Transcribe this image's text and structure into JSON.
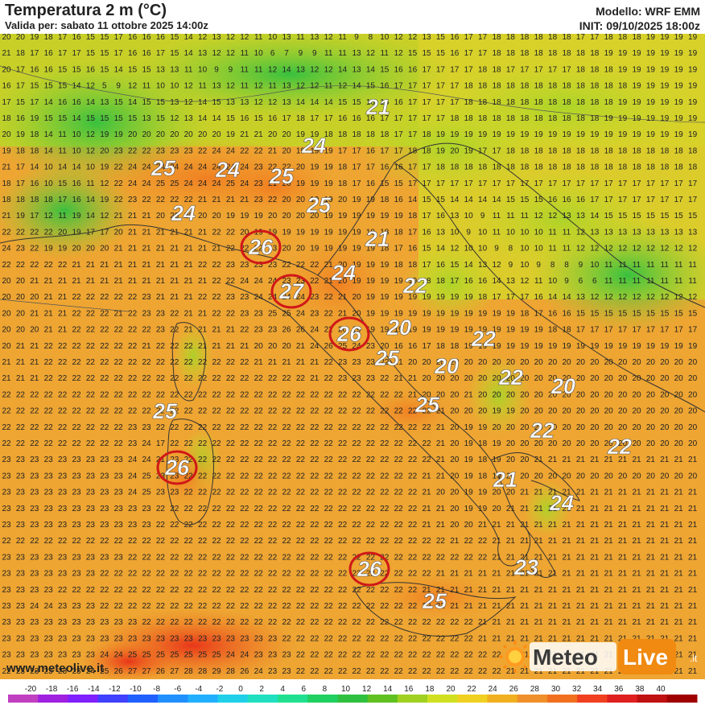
{
  "header": {
    "title": "Temperatura 2 m (°C)",
    "valid": "Valida per: sabato 11 ottobre 2025 14:00z",
    "model": "Modello: WRF EMM",
    "init": "INIT: 09/10/2025 18:00z"
  },
  "footer": {
    "site": "www.meteolive.it",
    "logo_left": "Meteo",
    "logo_right": "Live",
    "logo_suffix": ".it"
  },
  "scale": {
    "ticks": [
      "-20",
      "-18",
      "-16",
      "-14",
      "-12",
      "-10",
      "-8",
      "-6",
      "-4",
      "-2",
      "0",
      "2",
      "4",
      "6",
      "8",
      "10",
      "12",
      "14",
      "16",
      "18",
      "20",
      "22",
      "24",
      "26",
      "28",
      "30",
      "32",
      "34",
      "36",
      "38",
      "40"
    ],
    "colors": [
      "#c040c0",
      "#a020e0",
      "#8020ff",
      "#4040ff",
      "#2060ff",
      "#2090ff",
      "#20b0ff",
      "#20d0e8",
      "#20e0c0",
      "#20e090",
      "#20d060",
      "#30c040",
      "#60c020",
      "#a0d020",
      "#d0e020",
      "#f0d020",
      "#f0b020",
      "#f0902a",
      "#f07020",
      "#f04020",
      "#e02020",
      "#c01010",
      "#a00000"
    ]
  },
  "labels": [
    {
      "v": "21",
      "ring": false
    },
    {
      "v": "24",
      "ring": false
    },
    {
      "v": "25",
      "ring": false
    },
    {
      "v": "24",
      "ring": false
    },
    {
      "v": "25",
      "ring": false
    },
    {
      "v": "24",
      "ring": false
    },
    {
      "v": "25",
      "ring": false
    },
    {
      "v": "26",
      "ring": true
    },
    {
      "v": "21",
      "ring": false
    },
    {
      "v": "24",
      "ring": false
    },
    {
      "v": "27",
      "ring": true
    },
    {
      "v": "22",
      "ring": false
    },
    {
      "v": "26",
      "ring": true
    },
    {
      "v": "20",
      "ring": false
    },
    {
      "v": "22",
      "ring": false
    },
    {
      "v": "25",
      "ring": false
    },
    {
      "v": "20",
      "ring": false
    },
    {
      "v": "22",
      "ring": false
    },
    {
      "v": "20",
      "ring": false
    },
    {
      "v": "25",
      "ring": false
    },
    {
      "v": "25",
      "ring": false
    },
    {
      "v": "22",
      "ring": false
    },
    {
      "v": "22",
      "ring": false
    },
    {
      "v": "26",
      "ring": true
    },
    {
      "v": "21",
      "ring": false
    },
    {
      "v": "24",
      "ring": false
    },
    {
      "v": "26",
      "ring": true
    },
    {
      "v": "23",
      "ring": false
    },
    {
      "v": "25",
      "ring": false
    }
  ],
  "grid_rows": [
    "20 20 19 18 17 16 15 15 17 16 16 16 15 14 12 13 12 12 11 10 13 11 13 12 11 9 8 10 12 12 13 15 16 17 17 18 18 18 18 18 18 17 17 18 18 18 19 19 19 19",
    "21 18 17 16 17 17 15 15 17 16 16 17 15 14 13 12 12 11 10 6 7 9 9 11 11 13 12 11 12 15 15 15 16 17 17 18 18 18 18 18 18 18 18 19 19 19 19 19 19 19",
    "20 17 16 16 15 15 16 15 14 15 15 13 13 11 10 9 9 11 11 12 14 13 12 12 14 13 14 15 16 16 17 17 17 17 18 18 17 17 17 17 17 18 18 18 19 19 19 19 19 19",
    "16 17 15 15 15 14 12 5 9 12 11 10 10 12 11 13 12 11 12 11 13 12 12 11 12 14 15 16 17 17 17 17 17 18 18 18 18 18 18 18 18 18 18 18 18 19 19 19 19 19",
    "17 15 17 14 16 16 14 13 15 14 15 15 13 12 14 15 13 13 12 12 13 14 14 14 15 15 16 16 16 17 17 17 17 18 18 18 18 18 18 18 18 18 18 18 19 19 19 19 19 19",
    "18 16 19 15 15 14 15 15 15 15 13 15 12 13 14 14 15 16 15 16 17 18 17 17 16 16 16 17 17 17 17 17 18 18 18 18 18 18 18 18 18 18 18 19 19 19 19 19 19 19",
    "20 19 18 14 11 10 12 19 19 20 20 20 20 20 20 20 19 21 21 20 20 19 19 18 18 18 18 18 17 17 18 19 19 19 19 19 19 19 19 19 19 19 19 19 19 19 19 19 19 19",
    "19 18 18 14 11 10 12 20 23 22 22 23 23 23 22 24 24 22 22 21 20 19 19 19 17 17 16 17 17 18 18 19 20 19 17 17 18 18 18 18 18 18 18 18 18 18 18 18 18 18",
    "21 17 14 10 14 14 10 19 22 24 24 24 24 24 24 24 24 24 23 22 22 20 19 19 18 17 17 16 16 17 17 18 18 18 18 18 18 18 18 18 18 18 18 18 18 18 18 18 18 18",
    "18 17 16 10 15 16 11 12 22 24 24 25 25 24 24 24 25 24 23 21 20 19 19 19 18 17 16 15 15 17 17 17 17 17 17 17 17 17 17 17 17 17 17 17 17 17 17 17 17 17",
    "18 18 18 18 17 16 14 19 22 23 22 22 22 22 21 21 21 21 23 22 20 20 19 19 20 19 19 18 16 14 15 15 14 14 14 14 15 15 15 16 16 16 17 17 17 17 17 17 17 17",
    "21 19 17 12 11 19 14 12 21 21 21 20 20 20 20 20 19 19 19 20 20 20 20 19 19 19 19 19 19 18 17 16 13 10 9 11 11 11 12 12 13 13 14 15 15 15 15 15 15 15",
    "22 22 22 22 20 19 17 17 20 21 21 21 21 21 21 22 22 20 19 19 19 19 19 19 19 19 19 18 18 17 16 13 10 9 10 11 10 10 10 11 11 12 13 13 13 13 13 13 13 13",
    "24 23 22 19 19 20 20 20 21 21 21 21 21 21 21 21 22 22 22 23 20 20 19 19 19 19 19 18 17 16 15 14 12 10 10 9 8 10 10 11 11 12 12 12 12 12 12 12 12 12",
    "22 22 22 22 22 21 21 21 21 21 21 21 21 21 22 22 23 23 23 23 22 22 22 21 20 19 19 19 18 18 17 16 15 14 13 12 9 10 9 8 8 9 10 11 11 11 11 11 11 11",
    "20 20 21 21 21 21 21 21 21 21 21 21 21 21 21 22 22 24 24 24 23 23 22 21 20 19 19 19 19 19 18 18 17 16 16 14 13 12 11 10 9 6 6 11 11 11 11 11 11 11",
    "20 20 20 21 21 22 22 22 22 22 23 21 21 21 22 22 23 23 24 24 24 24 23 22 21 20 19 19 19 19 19 19 19 19 18 17 17 17 16 14 14 13 12 12 12 12 12 12 12 12",
    "20 20 21 21 21 22 22 22 21 22 23 23 22 21 21 22 22 23 23 25 25 24 23 22 21 20 19 19 19 19 19 19 19 19 19 19 19 18 17 16 16 15 15 15 15 15 15 15 15 15",
    "20 20 20 21 21 22 22 22 22 22 22 23 22 21 21 21 21 22 23 23 26 26 24 22 20 19 19 19 19 19 19 19 19 19 19 19 19 19 19 18 18 17 17 17 17 17 17 17 17 17",
    "20 21 21 22 22 22 22 22 22 22 21 22 22 22 21 21 21 21 20 20 20 21 24 26 25 24 23 20 16 16 17 18 18 19 19 19 19 19 19 19 19 19 19 19 19 19 19 19 19 19",
    "21 21 21 22 22 22 22 22 22 22 22 22 22 22 22 22 22 22 21 21 21 21 21 22 23 23 23 22 21 20 20 20 20 20 20 20 20 20 20 20 20 20 20 20 20 20 20 20 20 20",
    "21 21 21 22 22 22 22 22 22 22 22 22 22 22 22 22 22 22 22 22 22 22 21 22 23 23 23 22 21 21 20 20 20 20 20 20 20 20 20 20 20 20 20 20 20 20 20 20 20 20",
    "22 22 22 22 22 22 22 22 22 22 22 22 22 22 22 22 22 22 22 22 22 22 22 22 22 22 22 22 22 21 20 20 20 21 20 20 20 20 20 20 20 20 20 20 20 20 20 20 20 20",
    "22 22 22 22 22 22 22 22 22 22 22 22 22 22 22 22 22 22 22 22 22 22 22 22 22 22 22 22 22 22 22 21 20 20 20 19 19 20 20 20 20 20 20 20 20 20 20 20 20 20",
    "22 22 22 22 22 22 22 22 22 23 23 22 22 22 22 22 22 22 22 22 22 22 22 22 22 22 22 22 22 22 22 21 20 19 19 20 20 20 20 20 20 20 20 20 20 20 20 20 20 20",
    "22 22 22 22 22 22 22 22 22 23 24 17 22 22 22 22 22 22 22 22 22 22 22 22 22 22 22 22 22 22 22 21 20 19 18 19 20 20 20 20 20 20 20 20 20 20 20 20 20 20",
    "23 23 23 23 23 23 23 23 23 24 24 21 23 22 22 22 22 22 22 22 22 22 22 22 22 22 22 22 22 22 22 21 20 19 18 19 20 20 21 21 21 21 21 21 21 21 21 21 21 21",
    "23 23 23 23 23 23 23 23 23 24 25 23 23 22 22 22 22 22 22 22 22 22 22 22 22 22 22 22 22 22 21 21 20 19 18 19 20 20 20 20 20 20 20 20 20 20 20 20 20 20",
    "23 23 23 23 23 23 23 23 23 24 25 23 23 22 22 22 22 22 22 22 22 22 22 22 22 22 22 22 22 22 21 20 20 19 19 20 20 21 21 21 21 21 21 21 21 21 21 21 21 21",
    "23 23 23 23 23 23 23 23 23 23 23 22 22 22 22 22 22 22 22 22 22 22 22 22 22 22 22 22 22 22 21 21 20 19 19 20 21 21 21 21 21 21 21 21 21 21 21 21 21 21",
    "23 23 23 23 23 23 23 23 23 23 23 22 22 22 22 22 22 22 22 22 22 22 22 22 22 22 22 22 22 22 21 21 20 20 21 21 21 21 21 21 21 21 21 21 21 21 21 21 21 21",
    "22 22 22 22 22 22 22 22 22 22 22 22 22 22 22 22 22 22 22 22 22 22 22 22 22 22 22 22 22 22 22 22 21 22 22 21 21 21 21 21 21 21 21 21 21 21 21 21 21 21",
    "23 23 23 23 23 23 23 23 23 22 22 22 22 22 22 22 22 22 22 22 22 22 22 22 22 22 22 22 22 22 22 22 22 22 22 21 21 21 21 21 21 21 21 21 21 21 21 21 21 21",
    "23 23 23 23 23 23 23 22 22 22 22 22 22 22 22 22 22 22 22 22 22 22 22 22 22 22 22 22 22 22 22 21 21 21 21 21 21 21 21 21 21 21 21 21 21 21 21 21 21 21",
    "23 23 23 23 22 22 22 22 22 22 22 22 22 22 22 22 22 22 22 22 22 22 22 22 22 22 22 22 22 22 21 21 21 21 21 21 21 21 21 21 21 21 21 21 21 21 21 21 21 21",
    "23 23 24 24 23 23 23 22 22 22 22 22 22 22 22 22 22 22 22 22 22 22 22 22 22 22 22 22 22 22 22 22 21 21 21 21 21 21 21 21 21 21 21 21 21 21 21 21 21 21",
    "23 23 23 23 23 23 23 23 23 23 22 22 22 22 22 22 22 22 22 22 22 22 22 22 22 22 22 22 22 22 22 22 22 22 21 21 21 21 21 21 21 21 21 21 21 21 21 21 21 21",
    "23 23 23 23 23 23 23 23 23 23 23 23 23 23 23 23 23 23 23 23 22 22 22 22 22 22 22 22 22 22 22 22 22 22 21 21 21 21 21 21 21 21 21 21 21 21 21 21 21 21",
    "23 23 23 23 23 23 23 24 24 25 25 25 25 25 25 25 24 24 23 23 23 22 22 22 22 22 22 22 22 22 22 22 22 22 22 22 21 21 21 21 21 21 21 21 21 21 21 21 21 21",
    "22 23 23 23 23 23 24 25 26 27 27 26 27 28 28 29 28 26 24 23 23 22 22 22 22 22 22 22 22 22 22 22 22 22 22 22 21 21 21 21 21 21 21 21 21 21 21 21 21 21",
    "22 22 23 23 24 25 26 27 28 28 28 28 29 29 28 28 27 25 24 23 23 22 22 22 22 22 22 22 22 22 22 22 22 22 22 22 21 21 21 21 21 21 21 21 21 21 21 21 21 21"
  ]
}
